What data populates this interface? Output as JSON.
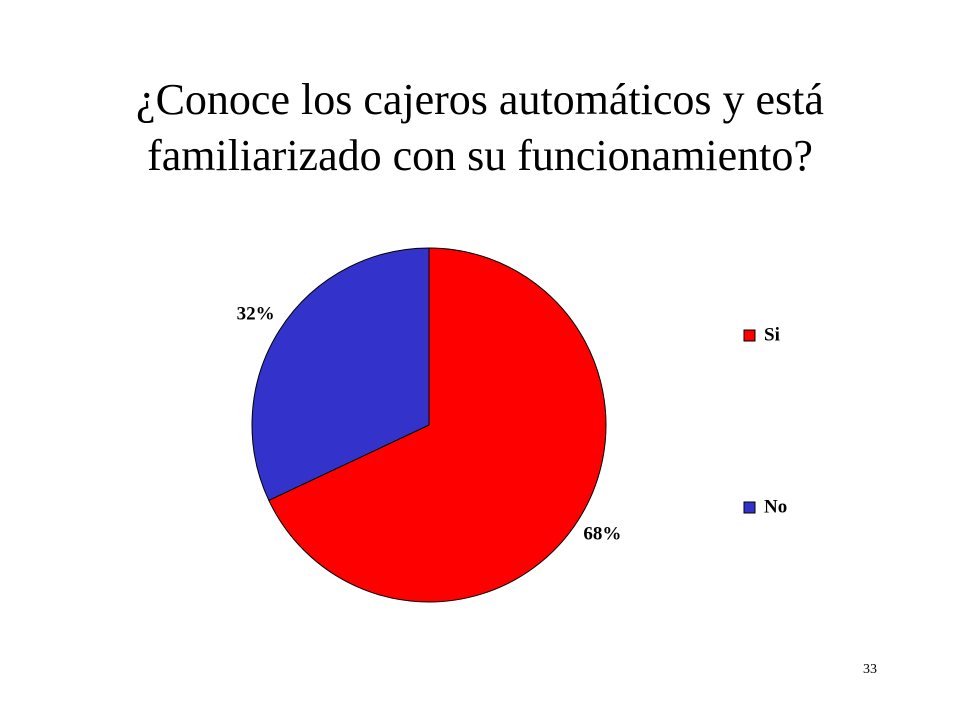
{
  "slide": {
    "title_line1": "¿Conoce los cajeros automáticos y está",
    "title_line2": "familiarizado con su funcionamiento?",
    "page_number": "33"
  },
  "chart_data": {
    "type": "pie",
    "title": "",
    "slices": [
      {
        "name": "Si",
        "value": 68,
        "label": "68%",
        "color": "#ff0000"
      },
      {
        "name": "No",
        "value": 32,
        "label": "32%",
        "color": "#3333cc"
      }
    ],
    "legend": {
      "placement": "right",
      "entries": [
        "Si",
        "No"
      ]
    },
    "start_angle": "12 o'clock",
    "direction": "clockwise"
  }
}
